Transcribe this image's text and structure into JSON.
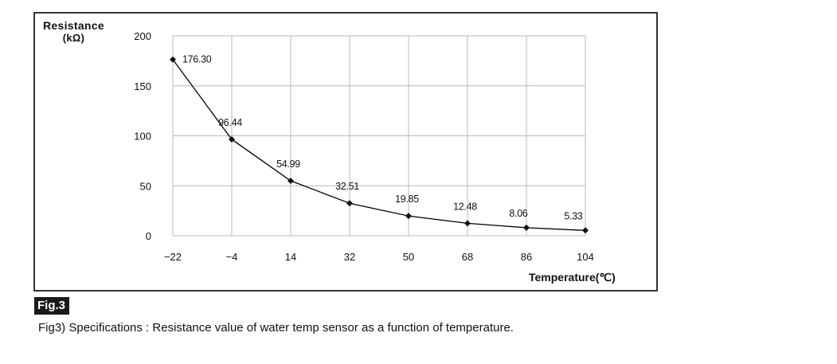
{
  "chart_data": {
    "type": "line",
    "ylabel": "Resistance",
    "yunit": "(kΩ)",
    "xlabel": "Temperature(℃)",
    "x": [
      -22,
      -4,
      14,
      32,
      50,
      68,
      86,
      104
    ],
    "xtick_labels": [
      "−22",
      "−4",
      "14",
      "32",
      "50",
      "68",
      "86",
      "104"
    ],
    "ylim": [
      0,
      200
    ],
    "yticks": [
      0,
      50,
      100,
      150,
      200
    ],
    "series": [
      {
        "values": [
          176.3,
          96.44,
          54.99,
          32.51,
          19.85,
          12.48,
          8.06,
          5.33
        ],
        "labels": [
          "176.30",
          "96.44",
          "54.99",
          "32.51",
          "19.85",
          "12.48",
          "8.06",
          "5.33"
        ]
      }
    ],
    "grid": true,
    "marker": "diamond",
    "line_color": "#000000"
  },
  "figure": {
    "badge": "Fig.3",
    "caption": "Fig3) Specifications : Resistance value of water temp sensor as a function of temperature."
  }
}
